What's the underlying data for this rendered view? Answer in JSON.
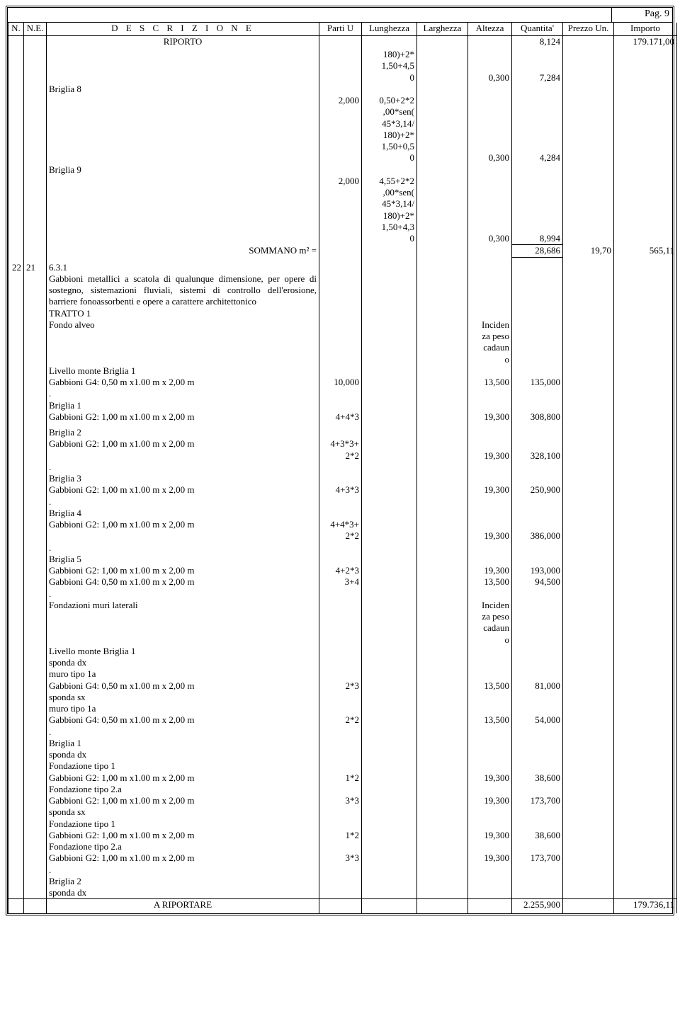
{
  "page_label": "Pag. 9",
  "headers": {
    "n": "N.",
    "ne": "N.E.",
    "desc": "D E S C R I Z I O N E",
    "parti": "Parti U",
    "lunghezza": "Lunghezza",
    "larghezza": "Larghezza",
    "altezza": "Altezza",
    "quantita": "Quantita'",
    "prezzo": "Prezzo Un.",
    "importo": "Importo"
  },
  "riporto": {
    "label": "RIPORTO",
    "quantita": "8,124",
    "importo": "179.171,00"
  },
  "top_rows": [
    {
      "desc": "",
      "parti": "",
      "lun": "180)+2*",
      "alt": "",
      "qta": ""
    },
    {
      "desc": "",
      "parti": "",
      "lun": "1,50+4,5",
      "alt": "",
      "qta": ""
    },
    {
      "desc": "",
      "parti": "",
      "lun": "0",
      "alt": "0,300",
      "qta": "7,284"
    },
    {
      "desc": "Briglia 8",
      "parti": "",
      "lun": "",
      "alt": "",
      "qta": "",
      "indent": 1
    },
    {
      "desc": "",
      "parti": "2,000",
      "lun": "0,50+2*2",
      "alt": "",
      "qta": ""
    },
    {
      "desc": "",
      "parti": "",
      "lun": ",00*sen(",
      "alt": "",
      "qta": ""
    },
    {
      "desc": "",
      "parti": "",
      "lun": "45*3,14/",
      "alt": "",
      "qta": ""
    },
    {
      "desc": "",
      "parti": "",
      "lun": "180)+2*",
      "alt": "",
      "qta": ""
    },
    {
      "desc": "",
      "parti": "",
      "lun": "1,50+0,5",
      "alt": "",
      "qta": ""
    },
    {
      "desc": "",
      "parti": "",
      "lun": "0",
      "alt": "0,300",
      "qta": "4,284"
    },
    {
      "desc": "Briglia 9",
      "parti": "",
      "lun": "",
      "alt": "",
      "qta": "",
      "indent": 1
    },
    {
      "desc": "",
      "parti": "2,000",
      "lun": "4,55+2*2",
      "alt": "",
      "qta": ""
    },
    {
      "desc": "",
      "parti": "",
      "lun": ",00*sen(",
      "alt": "",
      "qta": ""
    },
    {
      "desc": "",
      "parti": "",
      "lun": "45*3,14/",
      "alt": "",
      "qta": ""
    },
    {
      "desc": "",
      "parti": "",
      "lun": "180)+2*",
      "alt": "",
      "qta": ""
    },
    {
      "desc": "",
      "parti": "",
      "lun": "1,50+4,3",
      "alt": "",
      "qta": ""
    },
    {
      "desc": "",
      "parti": "",
      "lun": "0",
      "alt": "0,300",
      "qta": "8,994"
    }
  ],
  "sommano": {
    "label": "SOMMANO   m² =",
    "qta": "28,686",
    "prezzo": "19,70",
    "importo": "565,11"
  },
  "item": {
    "n": "22",
    "ne": "21",
    "code": "6.3.1",
    "text": "Gabbioni metallici a scatola di qualunque dimensione, per opere di sostegno, sistemazioni fluviali, sistemi di controllo dell'erosione, barriere fonoassorbenti e opere a carattere architettonico"
  },
  "body_rows": [
    {
      "desc": "TRATTO 1",
      "indent": 1
    },
    {
      "desc": "Fondo alveo",
      "indent": 1,
      "alt": "Inciden"
    },
    {
      "desc": "",
      "alt": "za peso"
    },
    {
      "desc": "",
      "alt": "cadaun"
    },
    {
      "desc": "",
      "alt": "o"
    },
    {
      "desc": "Livello monte Briglia 1",
      "indent": 1
    },
    {
      "desc": "Gabbioni G4: 0,50 m x1.00 m x 2,00 m",
      "indent": 1,
      "parti": "10,000",
      "alt": "13,500",
      "qta": "135,000"
    },
    {
      "desc": ".",
      "indent": 1
    },
    {
      "desc": "Briglia 1",
      "indent": 1
    },
    {
      "desc": "Gabbioni G2: 1,00 m x1.00 m x 2,00 m",
      "indent": 1,
      "parti": "4+4*3",
      "alt": "19,300",
      "qta": "308,800"
    },
    {
      "blank": true
    },
    {
      "desc": "Briglia 2",
      "indent": 1
    },
    {
      "desc": "Gabbioni G2: 1,00 m x1.00 m x 2,00 m",
      "indent": 1,
      "parti": "4+3*3+"
    },
    {
      "desc": "",
      "parti": "2*2",
      "alt": "19,300",
      "qta": "328,100"
    },
    {
      "desc": ".",
      "indent": 1
    },
    {
      "desc": "Briglia 3",
      "indent": 1
    },
    {
      "desc": "Gabbioni G2: 1,00 m x1.00 m x 2,00 m",
      "indent": 1,
      "parti": "4+3*3",
      "alt": "19,300",
      "qta": "250,900"
    },
    {
      "desc": ".",
      "indent": 1
    },
    {
      "desc": "Briglia 4",
      "indent": 1
    },
    {
      "desc": "Gabbioni G2: 1,00 m x1.00 m x 2,00 m",
      "indent": 1,
      "parti": "4+4*3+"
    },
    {
      "desc": "",
      "parti": "2*2",
      "alt": "19,300",
      "qta": "386,000"
    },
    {
      "desc": ".",
      "indent": 1
    },
    {
      "desc": "Briglia 5",
      "indent": 1
    },
    {
      "desc": "Gabbioni G2: 1,00 m x1.00 m x 2,00 m",
      "indent": 1,
      "parti": "4+2*3",
      "alt": "19,300",
      "qta": "193,000"
    },
    {
      "desc": "Gabbioni G4: 0,50 m x1.00 m x 2,00 m",
      "indent": 1,
      "parti": "3+4",
      "alt": "13,500",
      "qta": "94,500"
    },
    {
      "desc": ".",
      "indent": 1
    },
    {
      "desc": "Fondazioni muri laterali",
      "indent": 1,
      "alt": "Inciden"
    },
    {
      "desc": "",
      "alt": "za peso"
    },
    {
      "desc": "",
      "alt": "cadaun"
    },
    {
      "desc": "",
      "alt": "o"
    },
    {
      "desc": "Livello monte Briglia 1",
      "indent": 1
    },
    {
      "desc": "sponda dx",
      "indent": 1
    },
    {
      "desc": "muro tipo 1a",
      "indent": 1
    },
    {
      "desc": "Gabbioni G4: 0,50 m x1.00 m x 2,00 m",
      "indent": 1,
      "parti": "2*3",
      "alt": "13,500",
      "qta": "81,000"
    },
    {
      "desc": "sponda sx",
      "indent": 1
    },
    {
      "desc": "muro tipo 1a",
      "indent": 1
    },
    {
      "desc": "Gabbioni G4: 0,50 m x1.00 m x 2,00 m",
      "indent": 1,
      "parti": "2*2",
      "alt": "13,500",
      "qta": "54,000"
    },
    {
      "desc": ".",
      "indent": 1
    },
    {
      "desc": "Briglia 1",
      "indent": 1
    },
    {
      "desc": "sponda dx",
      "indent": 1
    },
    {
      "desc": "Fondazione tipo 1",
      "indent": 1
    },
    {
      "desc": "Gabbioni G2: 1,00 m x1.00 m x 2,00 m",
      "indent": 1,
      "parti": "1*2",
      "alt": "19,300",
      "qta": "38,600"
    },
    {
      "desc": "Fondazione tipo 2.a",
      "indent": 1
    },
    {
      "desc": "Gabbioni G2: 1,00 m x1.00 m x 2,00 m",
      "indent": 1,
      "parti": "3*3",
      "alt": "19,300",
      "qta": "173,700"
    },
    {
      "desc": "sponda sx",
      "indent": 1
    },
    {
      "desc": "Fondazione tipo 1",
      "indent": 1
    },
    {
      "desc": "Gabbioni G2: 1,00 m x1.00 m x 2,00 m",
      "indent": 1,
      "parti": "1*2",
      "alt": "19,300",
      "qta": "38,600"
    },
    {
      "desc": "Fondazione tipo 2.a",
      "indent": 1
    },
    {
      "desc": "Gabbioni G2: 1,00 m x1.00 m x 2,00 m",
      "indent": 1,
      "parti": "3*3",
      "alt": "19,300",
      "qta": "173,700"
    },
    {
      "desc": ".",
      "indent": 1
    },
    {
      "desc": "Briglia 2",
      "indent": 1
    },
    {
      "desc": "sponda dx",
      "indent": 1
    }
  ],
  "footer": {
    "label": "A RIPORTARE",
    "qta": "2.255,900",
    "importo": "179.736,11"
  }
}
